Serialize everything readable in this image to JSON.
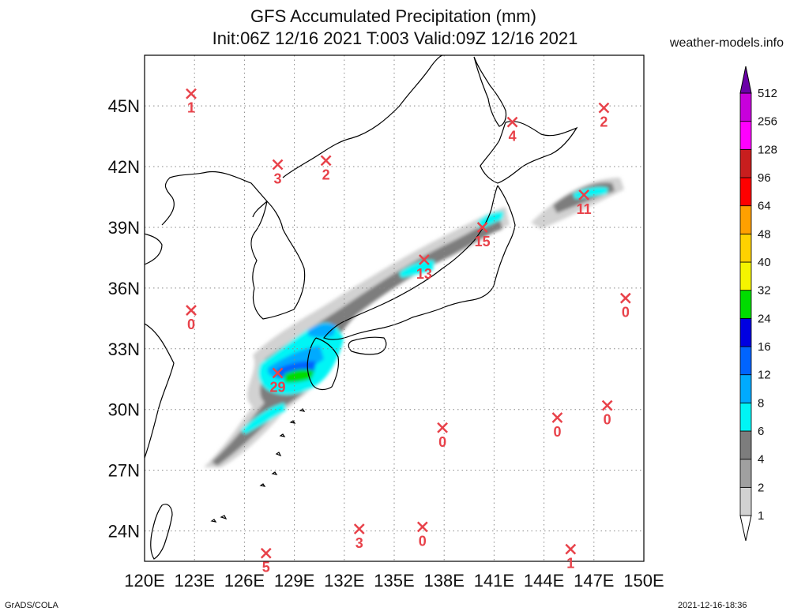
{
  "header": {
    "title_line1": "GFS Accumulated Precipitation (mm)",
    "title_line2": "Init:06Z 12/16 2021 T:003 Valid:09Z 12/16 2021",
    "site": "weather-models.info"
  },
  "footer": {
    "left": "GrADS/COLA",
    "right": "2021-12-16-18:36"
  },
  "map": {
    "lon_range": [
      120,
      150
    ],
    "lat_range": [
      22.5,
      47.5
    ],
    "lon_ticks": [
      120,
      123,
      126,
      129,
      132,
      135,
      138,
      141,
      144,
      147,
      150
    ],
    "lon_labels": [
      "120E",
      "123E",
      "126E",
      "129E",
      "132E",
      "135E",
      "138E",
      "141E",
      "144E",
      "147E",
      "150E"
    ],
    "lat_ticks": [
      24,
      27,
      30,
      33,
      36,
      39,
      42,
      45
    ],
    "lat_labels": [
      "24N",
      "27N",
      "30N",
      "33N",
      "36N",
      "39N",
      "42N",
      "45N"
    ],
    "stations": [
      {
        "lon": 122.8,
        "lat": 45.6,
        "value": "1"
      },
      {
        "lon": 142.1,
        "lat": 44.2,
        "value": "4"
      },
      {
        "lon": 147.6,
        "lat": 44.9,
        "value": "2"
      },
      {
        "lon": 128.0,
        "lat": 42.1,
        "value": "3"
      },
      {
        "lon": 130.9,
        "lat": 42.3,
        "value": "2"
      },
      {
        "lon": 146.4,
        "lat": 40.6,
        "value": "11"
      },
      {
        "lon": 140.3,
        "lat": 39.0,
        "value": "15"
      },
      {
        "lon": 136.8,
        "lat": 37.4,
        "value": "13"
      },
      {
        "lon": 122.8,
        "lat": 34.9,
        "value": "0"
      },
      {
        "lon": 148.9,
        "lat": 35.5,
        "value": "0"
      },
      {
        "lon": 128.0,
        "lat": 31.8,
        "value": "29"
      },
      {
        "lon": 137.9,
        "lat": 29.1,
        "value": "0"
      },
      {
        "lon": 144.8,
        "lat": 29.6,
        "value": "0"
      },
      {
        "lon": 147.8,
        "lat": 30.2,
        "value": "0"
      },
      {
        "lon": 127.3,
        "lat": 22.9,
        "value": "5"
      },
      {
        "lon": 132.9,
        "lat": 24.1,
        "value": "3"
      },
      {
        "lon": 136.7,
        "lat": 24.2,
        "value": "0"
      },
      {
        "lon": 145.6,
        "lat": 23.1,
        "value": "1"
      }
    ],
    "colors": {
      "station_marker": "#e8424a",
      "coast": "#000000",
      "grid": "#888888"
    }
  },
  "colorbar": {
    "labels": [
      "1",
      "2",
      "4",
      "6",
      "8",
      "12",
      "16",
      "24",
      "32",
      "40",
      "48",
      "64",
      "96",
      "128",
      "256",
      "512"
    ],
    "colors": [
      "#d2d2d2",
      "#a0a0a0",
      "#7d7d7d",
      "#00f5f5",
      "#00aaff",
      "#0064ff",
      "#0000e1",
      "#00dc00",
      "#f5f500",
      "#ffd200",
      "#ffa000",
      "#ff0000",
      "#c81e1e",
      "#ff00ff",
      "#c800dc",
      "#9a00c8",
      "#6a00a8"
    ]
  }
}
